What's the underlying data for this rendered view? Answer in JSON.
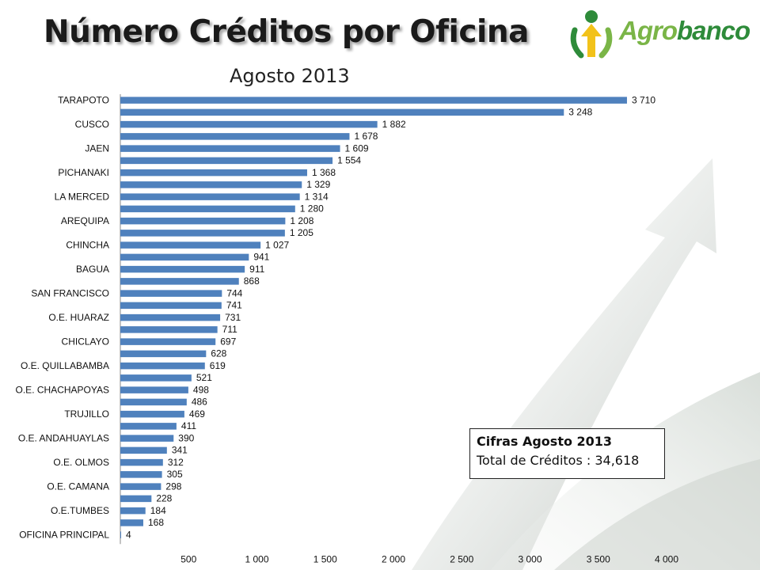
{
  "header": {
    "title": "Número Créditos por Oficina",
    "subtitle": "Agosto 2013"
  },
  "logo": {
    "text_part1": "Agro",
    "text_part2": "banco"
  },
  "info_box": {
    "title": "Cifras  Agosto 2013",
    "line": "Total de Créditos : 34,618"
  },
  "colors": {
    "bar": "#4f81bd",
    "axis": "#888888",
    "logo_light": "#7ab547",
    "logo_dark": "#2e8b3a",
    "logo_yellow": "#f2c21a"
  },
  "chart_data": {
    "type": "bar",
    "orientation": "horizontal",
    "xlim": [
      0,
      4000
    ],
    "xticks": [
      500,
      1000,
      1500,
      2000,
      2500,
      3000,
      3500,
      4000
    ],
    "xtick_labels": [
      "500",
      "1 000",
      "1 500",
      "2 000",
      "2 500",
      "3 000",
      "3 500",
      "4 000"
    ],
    "grid": false,
    "categories": [
      "TARAPOTO",
      "",
      "CUSCO",
      "",
      "JAEN",
      "",
      "PICHANAKI",
      "",
      "LA MERCED",
      "",
      "AREQUIPA",
      "",
      "CHINCHA",
      "",
      "BAGUA",
      "",
      "SAN FRANCISCO",
      "",
      "O.E. HUARAZ",
      "",
      "CHICLAYO",
      "",
      "O.E. QUILLABAMBA",
      "",
      "O.E. CHACHAPOYAS",
      "",
      "TRUJILLO",
      "",
      "O.E. ANDAHUAYLAS",
      "",
      "O.E. OLMOS",
      "",
      "O.E. CAMANA",
      "",
      "O.E.TUMBES",
      "",
      "OFICINA PRINCIPAL"
    ],
    "values": [
      3710,
      3248,
      1882,
      1678,
      1609,
      1554,
      1368,
      1329,
      1314,
      1280,
      1208,
      1205,
      1027,
      941,
      911,
      868,
      744,
      741,
      731,
      711,
      697,
      628,
      619,
      521,
      498,
      486,
      469,
      411,
      390,
      341,
      312,
      305,
      298,
      228,
      184,
      168,
      4
    ],
    "value_labels": [
      "3 710",
      "3 248",
      "1 882",
      "1 678",
      "1 609",
      "1 554",
      "1 368",
      "1 329",
      "1 314",
      "1 280",
      "1 208",
      "1 205",
      "1 027",
      "941",
      "911",
      "868",
      "744",
      "741",
      "731",
      "711",
      "697",
      "628",
      "619",
      "521",
      "498",
      "486",
      "469",
      "411",
      "390",
      "341",
      "312",
      "305",
      "298",
      "228",
      "184",
      "168",
      "4"
    ]
  }
}
